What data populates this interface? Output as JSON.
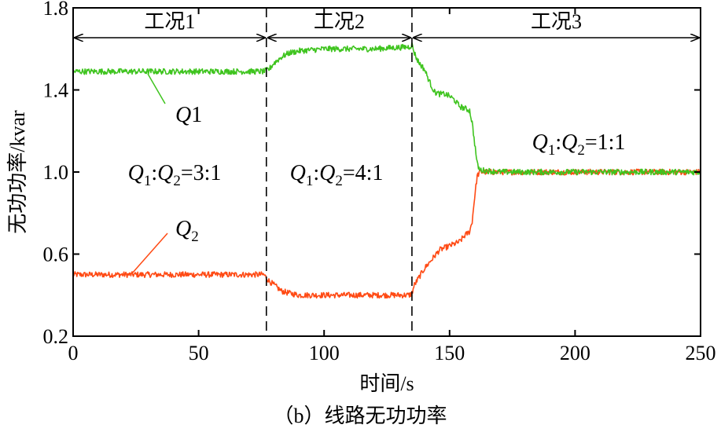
{
  "chart_data": {
    "type": "line",
    "caption": "（b）线路无功功率",
    "xlabel": "时间/s",
    "ylabel": "无功功率/kvar",
    "xlim": [
      0,
      250
    ],
    "ylim": [
      0.2,
      1.8
    ],
    "xticks": [
      0,
      50,
      100,
      150,
      200,
      250
    ],
    "yticks": [
      0.2,
      0.6,
      1.0,
      1.4,
      1.8
    ],
    "ytick_labels": [
      "0.2",
      "0.6",
      "1.0",
      "1.4",
      "1.8"
    ],
    "grid": false,
    "boundaries": [
      77,
      135
    ],
    "conditions": [
      {
        "label": "工况1",
        "start": 0,
        "end": 77
      },
      {
        "label": "工况2",
        "start": 77,
        "end": 135
      },
      {
        "label": "工况3",
        "start": 135,
        "end": 250
      }
    ],
    "ratios": [
      {
        "a": "Q",
        "a_sub": "1",
        "sep": ":",
        "b": "Q",
        "b_sub": "2",
        "eq": "=3:1"
      },
      {
        "a": "Q",
        "a_sub": "1",
        "sep": ":",
        "b": "Q",
        "b_sub": "2",
        "eq": "=4:1"
      },
      {
        "a": "Q",
        "a_sub": "1",
        "sep": ":",
        "b": "Q",
        "b_sub": "2",
        "eq": "=1:1"
      }
    ],
    "series": [
      {
        "name": "Q1",
        "label_main": "Q",
        "label_index": "1",
        "color": "#3fc41f",
        "x": [
          0,
          76,
          78,
          80,
          83,
          86,
          90,
          100,
          120,
          134,
          135,
          136,
          137,
          138,
          140,
          142,
          144,
          146,
          148,
          150,
          152,
          154,
          156,
          158,
          159,
          160,
          161,
          162,
          170,
          200,
          250
        ],
        "y": [
          1.49,
          1.49,
          1.5,
          1.53,
          1.56,
          1.58,
          1.59,
          1.6,
          1.6,
          1.61,
          1.62,
          1.58,
          1.55,
          1.53,
          1.5,
          1.44,
          1.39,
          1.38,
          1.38,
          1.37,
          1.35,
          1.32,
          1.31,
          1.3,
          1.24,
          1.14,
          1.04,
          1.01,
          1.0,
          1.0,
          1.0
        ]
      },
      {
        "name": "Q2",
        "label_main": "Q",
        "label_index": "2",
        "color": "#ff4a14",
        "x": [
          0,
          76,
          78,
          80,
          83,
          86,
          90,
          100,
          120,
          134,
          135,
          136,
          137,
          138,
          140,
          142,
          144,
          146,
          148,
          150,
          152,
          154,
          156,
          158,
          159,
          160,
          161,
          162,
          170,
          200,
          250
        ],
        "y": [
          0.5,
          0.5,
          0.47,
          0.45,
          0.42,
          0.41,
          0.4,
          0.4,
          0.4,
          0.4,
          0.41,
          0.45,
          0.47,
          0.49,
          0.53,
          0.56,
          0.59,
          0.62,
          0.63,
          0.64,
          0.65,
          0.66,
          0.69,
          0.71,
          0.76,
          0.88,
          0.98,
          1.0,
          1.0,
          1.0,
          1.0
        ]
      }
    ]
  }
}
